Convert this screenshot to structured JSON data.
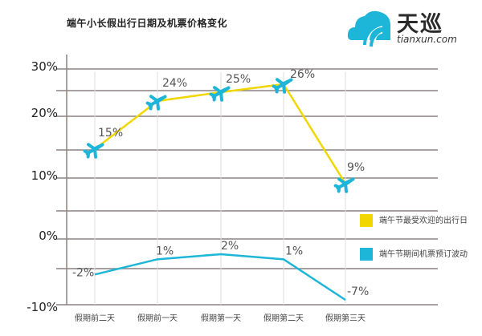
{
  "title": "端午小长假出行日期及机票价格变化",
  "logo": {
    "name_cn": "天巡",
    "name_en": "tianxun.com"
  },
  "chart_data": {
    "type": "line",
    "title": "端午小长假出行日期及机票价格变化",
    "categories": [
      "假期前二天",
      "假期前一天",
      "假期第一天",
      "假期第二天",
      "假期第三天"
    ],
    "y_ticks": [
      "30%",
      "20%",
      "10%",
      "0%",
      "-10%"
    ],
    "grid": true,
    "legend_position": "right",
    "series": [
      {
        "name": "端午节最受欢迎的出行日",
        "color": "#f2d600",
        "values": [
          15,
          24,
          25,
          26,
          9
        ],
        "labels": [
          "15%",
          "24%",
          "25%",
          "26%",
          "9%"
        ],
        "marker": "airplane"
      },
      {
        "name": "端午节期间机票预订波动",
        "color": "#1eb6d8",
        "values": [
          -2,
          1,
          2,
          1,
          -7
        ],
        "labels": [
          "-2%",
          "1%",
          "2%",
          "1%",
          "-7%"
        ]
      }
    ]
  }
}
